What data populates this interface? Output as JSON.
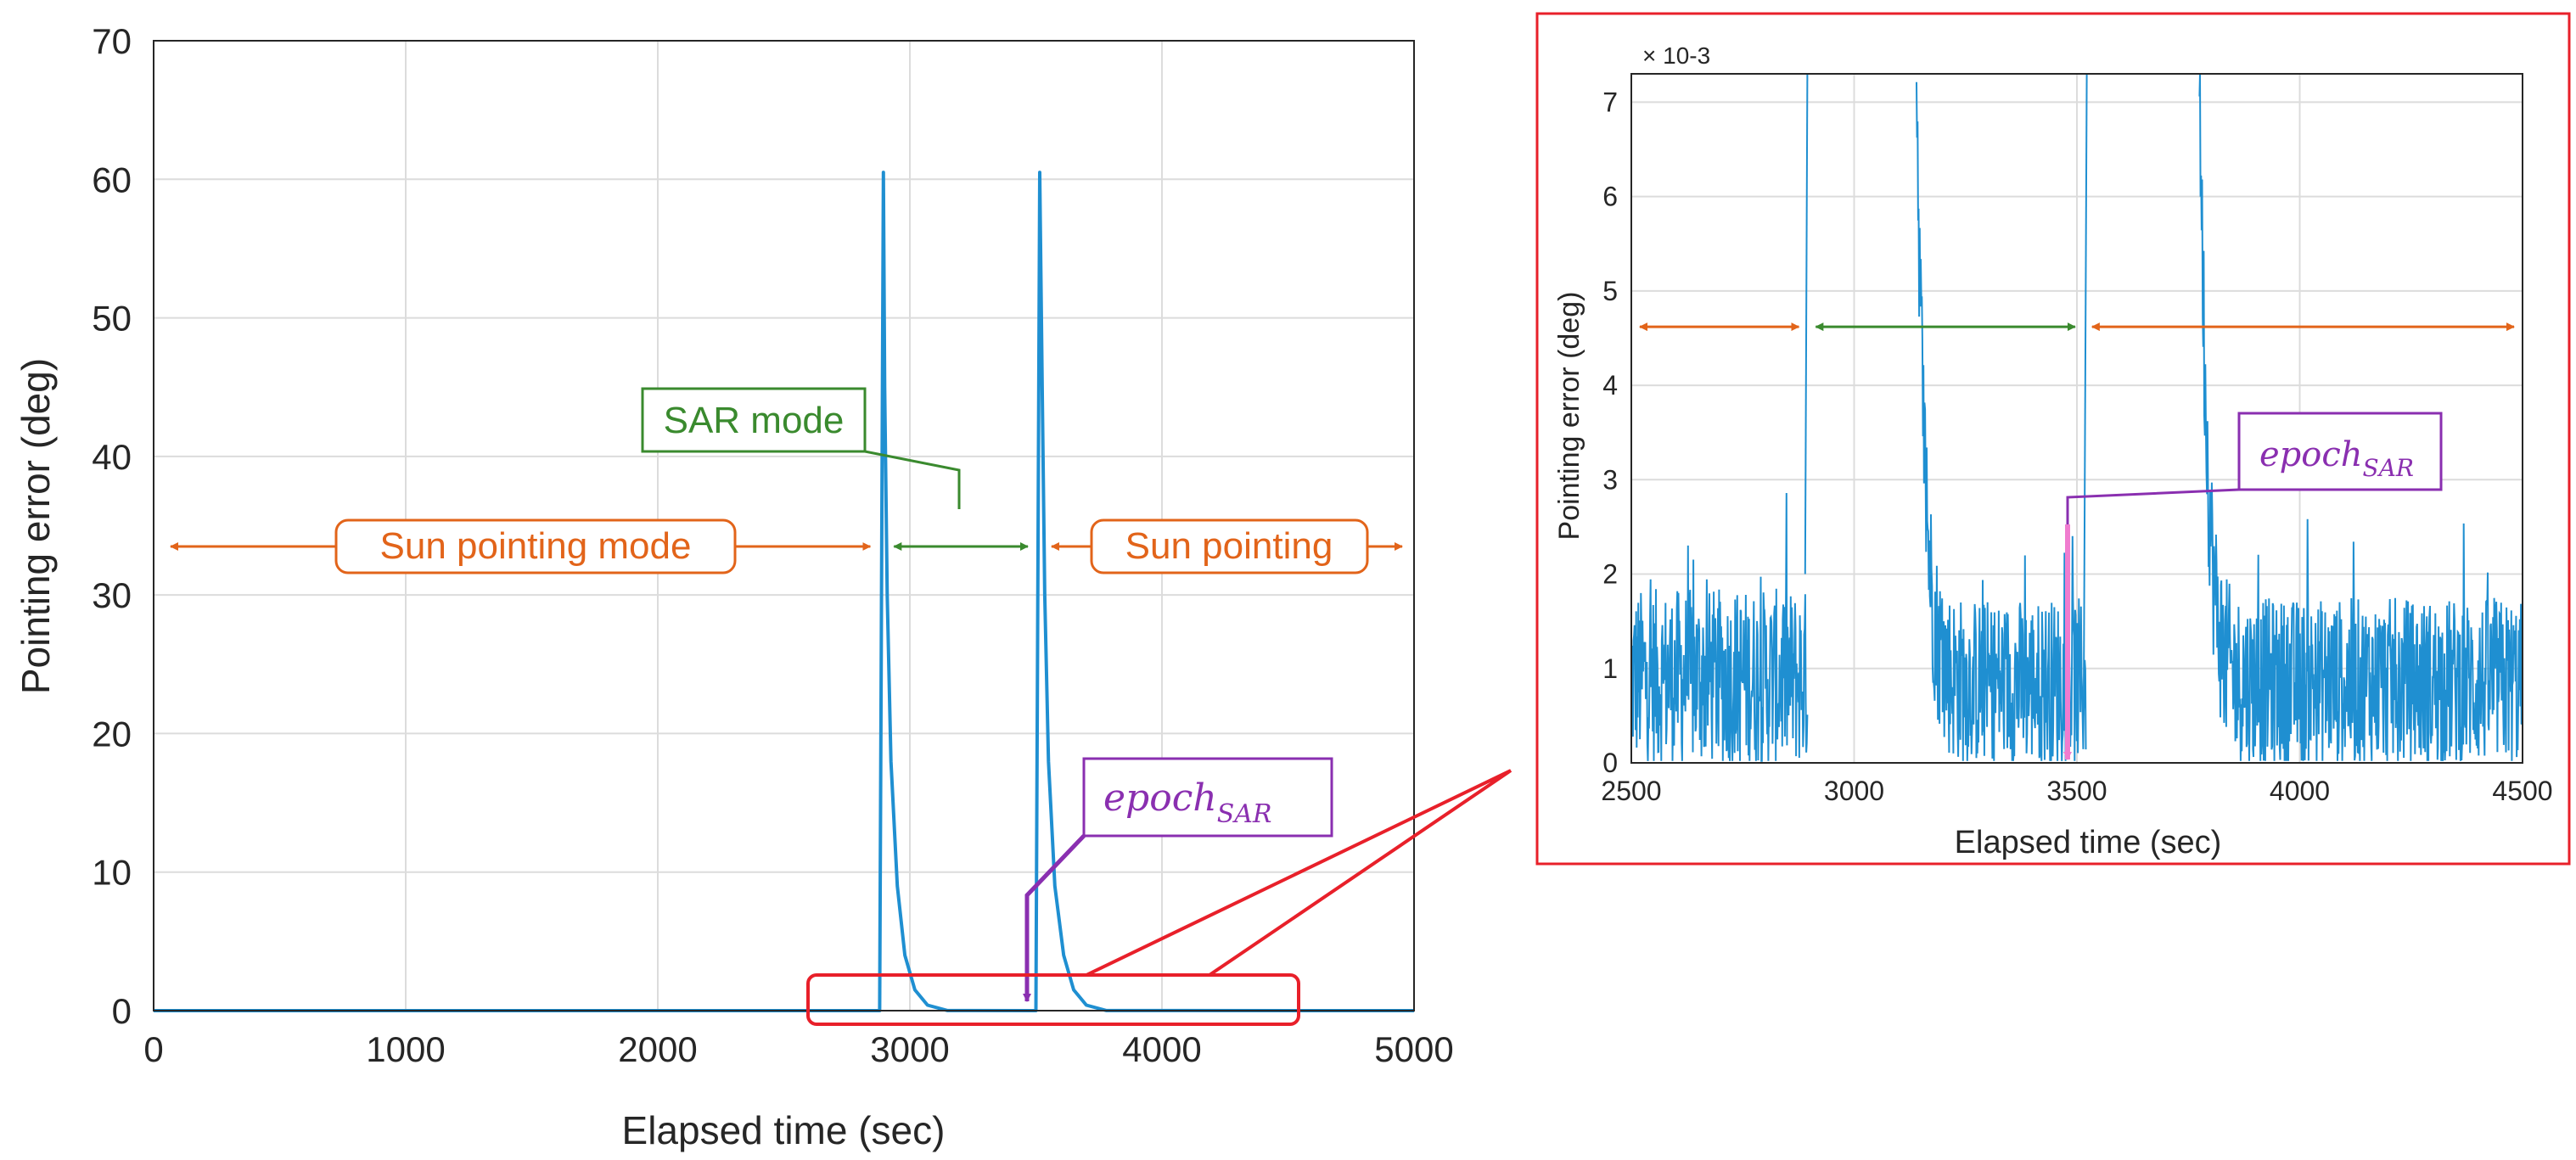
{
  "chart_data": [
    {
      "type": "line",
      "title": "",
      "xlabel": "Elapsed time (sec)",
      "ylabel": "Pointing error (deg)",
      "xlim": [
        0,
        5000
      ],
      "ylim": [
        0,
        70
      ],
      "xticks": [
        0,
        1000,
        2000,
        3000,
        4000,
        5000
      ],
      "yticks": [
        0,
        10,
        20,
        30,
        40,
        50,
        60,
        70
      ],
      "grid": true,
      "series": [
        {
          "name": "Pointing error",
          "color": "#1f8fd1",
          "x": [
            0,
            2880,
            2895,
            2900,
            2910,
            2925,
            2950,
            2980,
            3020,
            3070,
            3150,
            3500,
            3515,
            3525,
            3535,
            3550,
            3575,
            3610,
            3650,
            3700,
            3780,
            5000
          ],
          "y": [
            0.001,
            0.001,
            60.5,
            45,
            30,
            18,
            9,
            4,
            1.5,
            0.4,
            0.005,
            0.001,
            60.5,
            45,
            30,
            18,
            9,
            4,
            1.5,
            0.4,
            0.005,
            0.001
          ]
        }
      ],
      "annotations": {
        "sun_mode_left": "Sun pointing mode",
        "sar_mode": "SAR mode",
        "sun_mode_right": "Sun pointing",
        "epoch_main": "epoch",
        "epoch_sub": "SAR"
      },
      "mode_arrow_level": 33.5,
      "mode_spans": [
        [
          0,
          2890
        ],
        [
          2890,
          3515
        ],
        [
          3515,
          5000
        ]
      ],
      "sar_label_anchor": [
        3200,
        33.5
      ],
      "epoch_value": 3480,
      "zoom_box": {
        "x": [
          2600,
          4500
        ],
        "y": [
          -0.3,
          3.1
        ]
      },
      "colors": {
        "sun": "#e2641a",
        "sar": "#3a8a2e",
        "epoch": "#8a2fb0",
        "zoom": "#e8202a",
        "epoch_marker": "#f07ccf"
      }
    },
    {
      "type": "line",
      "title": "",
      "xlabel": "Elapsed time (sec)",
      "ylabel": "Pointing error (deg)",
      "exponent_label": "× 10-3",
      "xlim": [
        2500,
        4500
      ],
      "ylim": [
        0,
        7.3
      ],
      "xticks": [
        2500,
        3000,
        3500,
        4000,
        4500
      ],
      "yticks": [
        0,
        1,
        2,
        3,
        4,
        5,
        6,
        7
      ],
      "grid": true,
      "series": [
        {
          "name": "Pointing error (zoom)",
          "color": "#1f8fd1",
          "segments": [
            {
              "x": [
                2500,
                2895
              ],
              "noise": "baseline"
            },
            {
              "x": [
                2890,
                2895
              ],
              "y": [
                2,
                7.3
              ]
            },
            {
              "x": [
                3140,
                3520
              ],
              "noise": "decay"
            },
            {
              "x": [
                3515,
                3522
              ],
              "y": [
                0.5,
                7.3
              ]
            },
            {
              "x": [
                3775,
                4500
              ],
              "noise": "decay"
            }
          ]
        }
      ],
      "mode_arrow_level": 4.62,
      "mode_spans": [
        [
          2500,
          2895
        ],
        [
          2895,
          3515
        ],
        [
          3515,
          4500
        ]
      ],
      "epoch_value": 3480
    }
  ]
}
